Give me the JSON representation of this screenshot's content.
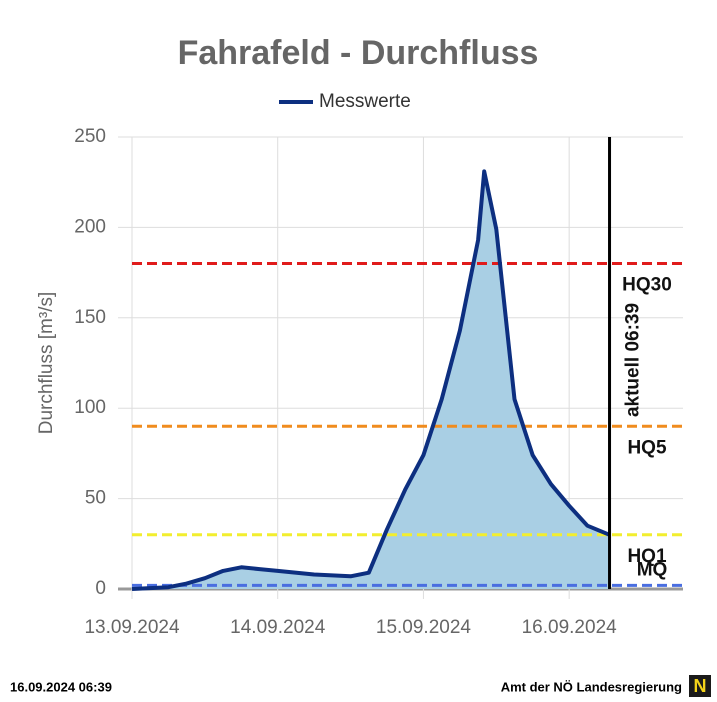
{
  "chart_data": {
    "type": "line",
    "title": "Fahrafeld - Durchfluss",
    "y_label": "Durchfluss [m³/s]",
    "x": [
      "2024-09-13T00:00",
      "2024-09-13T06:00",
      "2024-09-13T09:00",
      "2024-09-13T12:00",
      "2024-09-13T15:00",
      "2024-09-13T18:00",
      "2024-09-13T21:00",
      "2024-09-14T00:00",
      "2024-09-14T06:00",
      "2024-09-14T12:00",
      "2024-09-14T15:00",
      "2024-09-14T18:00",
      "2024-09-14T21:00",
      "2024-09-15T00:00",
      "2024-09-15T03:00",
      "2024-09-15T06:00",
      "2024-09-15T09:00",
      "2024-09-15T10:00",
      "2024-09-15T12:00",
      "2024-09-15T15:00",
      "2024-09-15T18:00",
      "2024-09-15T21:00",
      "2024-09-16T00:00",
      "2024-09-16T03:00",
      "2024-09-16T06:39"
    ],
    "series": [
      {
        "name": "Messwerte",
        "color": "#0d2f80",
        "values": [
          0,
          1,
          3,
          6,
          10,
          12,
          11,
          10,
          8,
          7,
          9,
          33,
          55,
          74,
          105,
          143,
          193,
          231,
          199,
          105,
          74,
          58,
          46,
          35,
          30
        ]
      }
    ],
    "area_color": "#a9cfe4",
    "xlim": [
      "2024-09-13T00:00",
      "2024-09-16T18:45"
    ],
    "xticks": [
      {
        "value": "2024-09-13T00:00",
        "label": "13.09.2024"
      },
      {
        "value": "2024-09-14T00:00",
        "label": "14.09.2024"
      },
      {
        "value": "2024-09-15T00:00",
        "label": "15.09.2024"
      },
      {
        "value": "2024-09-16T00:00",
        "label": "16.09.2024"
      }
    ],
    "ylim": [
      0,
      250
    ],
    "yticks": [
      0,
      50,
      100,
      150,
      200,
      250
    ],
    "grid": true,
    "thresholds": [
      {
        "label": "HQ30",
        "value": 180,
        "color": "#e01b1b"
      },
      {
        "label": "HQ5",
        "value": 90,
        "color": "#f08c1e"
      },
      {
        "label": "HQ1",
        "value": 30,
        "color": "#f2ee2e"
      },
      {
        "label": "MQ",
        "value": 2,
        "color": "#4a6ee0"
      }
    ],
    "current_marker": {
      "label": "aktuell 06:39",
      "x": "2024-09-16T06:39"
    }
  },
  "footer": {
    "left": "16.09.2024 06:39",
    "right": "Amt der NÖ Landesregierung"
  }
}
